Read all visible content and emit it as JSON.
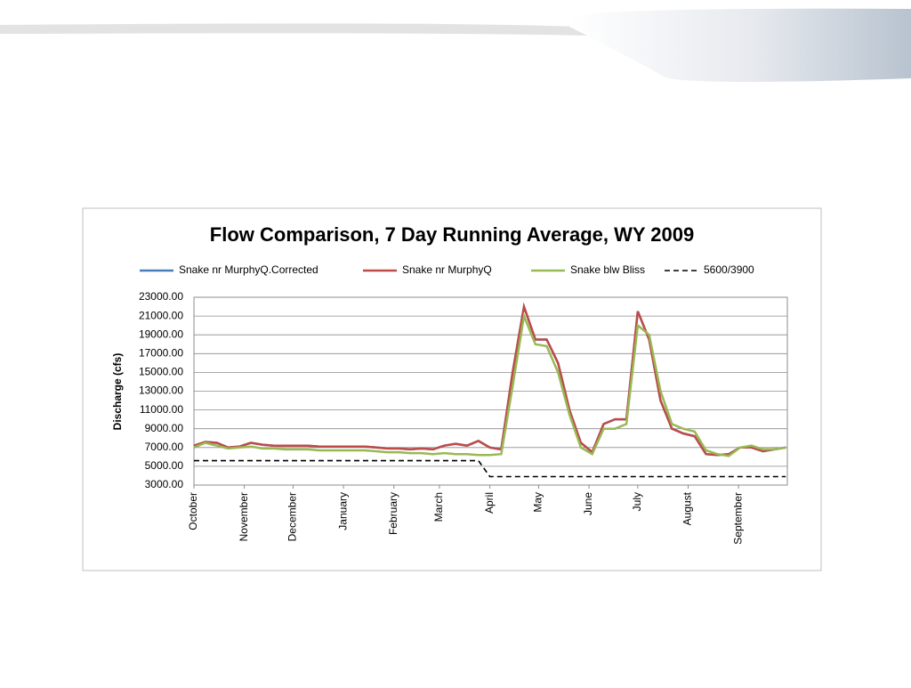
{
  "chart_data": {
    "type": "line",
    "title": "Flow Comparison, 7 Day Running Average, WY 2009",
    "y_label": "Discharge (cfs)",
    "x": [
      0,
      7,
      14,
      21,
      28,
      35,
      42,
      49,
      56,
      63,
      70,
      77,
      84,
      91,
      98,
      105,
      112,
      119,
      126,
      133,
      140,
      147,
      154,
      161,
      168,
      175,
      182,
      189,
      196,
      203,
      210,
      217,
      224,
      231,
      238,
      245,
      252,
      259,
      266,
      273,
      280,
      287,
      294,
      301,
      308,
      315,
      322,
      329,
      336,
      343,
      350,
      357,
      364
    ],
    "xlim": [
      0,
      365
    ],
    "xticks": [
      {
        "value": 0,
        "label": "October"
      },
      {
        "value": 31,
        "label": "November"
      },
      {
        "value": 61,
        "label": "December"
      },
      {
        "value": 92,
        "label": "January"
      },
      {
        "value": 123,
        "label": "February"
      },
      {
        "value": 151,
        "label": "March"
      },
      {
        "value": 182,
        "label": "April"
      },
      {
        "value": 212,
        "label": "May"
      },
      {
        "value": 243,
        "label": "June"
      },
      {
        "value": 273,
        "label": "July"
      },
      {
        "value": 304,
        "label": "August"
      },
      {
        "value": 335,
        "label": "September"
      }
    ],
    "ylim": [
      3000,
      23000
    ],
    "yticks": [
      {
        "value": 3000,
        "label": "3000.00"
      },
      {
        "value": 5000,
        "label": "5000.00"
      },
      {
        "value": 7000,
        "label": "7000.00"
      },
      {
        "value": 9000,
        "label": "9000.00"
      },
      {
        "value": 11000,
        "label": "11000.00"
      },
      {
        "value": 13000,
        "label": "13000.00"
      },
      {
        "value": 15000,
        "label": "15000.00"
      },
      {
        "value": 17000,
        "label": "17000.00"
      },
      {
        "value": 19000,
        "label": "19000.00"
      },
      {
        "value": 21000,
        "label": "21000.00"
      },
      {
        "value": 23000,
        "label": "23000.00"
      }
    ],
    "grid": true,
    "legend": "top",
    "series": [
      {
        "name": "Snake nr MurphyQ.Corrected",
        "color": "#4a7ebb",
        "values": [
          7200,
          7600,
          7500,
          7000,
          7100,
          7500,
          7300,
          7200,
          7200,
          7200,
          7200,
          7100,
          7100,
          7100,
          7100,
          7100,
          7000,
          6900,
          6900,
          6800,
          6900,
          6800,
          7200,
          7400,
          7200,
          7700,
          7000,
          6800,
          15000,
          22000,
          18500,
          18500,
          16000,
          11000,
          7500,
          6500,
          9500,
          10000,
          10000,
          21500,
          18500,
          12000,
          9000,
          8500,
          8200,
          6300,
          6200,
          6300,
          7000,
          7000,
          6600,
          6800,
          7000
        ]
      },
      {
        "name": "Snake nr MurphyQ",
        "color": "#be4b48",
        "values": [
          7200,
          7600,
          7500,
          7000,
          7100,
          7500,
          7300,
          7200,
          7200,
          7200,
          7200,
          7100,
          7100,
          7100,
          7100,
          7100,
          7000,
          6900,
          6900,
          6800,
          6900,
          6800,
          7200,
          7400,
          7200,
          7700,
          7000,
          6800,
          15000,
          22000,
          18500,
          18500,
          16000,
          11000,
          7500,
          6500,
          9500,
          10000,
          10000,
          21500,
          18500,
          12000,
          9000,
          8500,
          8200,
          6300,
          6200,
          6300,
          7000,
          7000,
          6600,
          6800,
          7000
        ]
      },
      {
        "name": "Snake blw Bliss",
        "color": "#98b954",
        "values": [
          7000,
          7500,
          7200,
          6900,
          7000,
          7100,
          6900,
          6900,
          6800,
          6800,
          6800,
          6700,
          6700,
          6700,
          6700,
          6700,
          6600,
          6500,
          6500,
          6400,
          6400,
          6300,
          6400,
          6300,
          6300,
          6200,
          6200,
          6300,
          13500,
          21000,
          18000,
          17800,
          15000,
          10500,
          7000,
          6300,
          9000,
          9000,
          9500,
          20000,
          19000,
          13000,
          9500,
          9000,
          8700,
          6700,
          6300,
          6100,
          7000,
          7200,
          6800,
          6800,
          7000
        ]
      },
      {
        "name": "5600/3900",
        "color": "#000000",
        "dashed": true,
        "values": [
          5600,
          5600,
          5600,
          5600,
          5600,
          5600,
          5600,
          5600,
          5600,
          5600,
          5600,
          5600,
          5600,
          5600,
          5600,
          5600,
          5600,
          5600,
          5600,
          5600,
          5600,
          5600,
          5600,
          5600,
          5600,
          5600,
          3900,
          3900,
          3900,
          3900,
          3900,
          3900,
          3900,
          3900,
          3900,
          3900,
          3900,
          3900,
          3900,
          3900,
          3900,
          3900,
          3900,
          3900,
          3900,
          3900,
          3900,
          3900,
          3900,
          3900,
          3900,
          3900,
          3900
        ]
      }
    ]
  }
}
